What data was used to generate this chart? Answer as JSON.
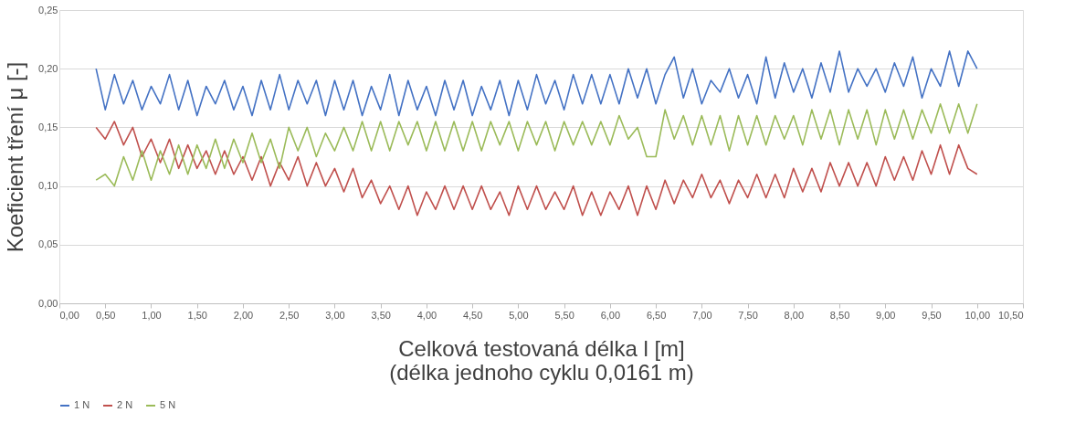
{
  "chart_data": {
    "type": "line",
    "xlabel": "Celková testovaná délka l [m]\n(délka jednoho cyklu 0,0161 m)",
    "ylabel": "Koeficient tření μ [-]",
    "x": [
      0.4,
      0.5,
      0.6,
      0.7,
      0.8,
      0.9,
      1.0,
      1.1,
      1.2,
      1.3,
      1.4,
      1.5,
      1.6,
      1.7,
      1.8,
      1.9,
      2.0,
      2.1,
      2.2,
      2.3,
      2.4,
      2.5,
      2.6,
      2.7,
      2.8,
      2.9,
      3.0,
      3.1,
      3.2,
      3.3,
      3.4,
      3.5,
      3.6,
      3.7,
      3.8,
      3.9,
      4.0,
      4.1,
      4.2,
      4.3,
      4.4,
      4.5,
      4.6,
      4.7,
      4.8,
      4.9,
      5.0,
      5.1,
      5.2,
      5.3,
      5.4,
      5.5,
      5.6,
      5.7,
      5.8,
      5.9,
      6.0,
      6.1,
      6.2,
      6.3,
      6.4,
      6.5,
      6.6,
      6.7,
      6.8,
      6.9,
      7.0,
      7.1,
      7.2,
      7.3,
      7.4,
      7.5,
      7.6,
      7.7,
      7.8,
      7.9,
      8.0,
      8.1,
      8.2,
      8.3,
      8.4,
      8.5,
      8.6,
      8.7,
      8.8,
      8.9,
      9.0,
      9.1,
      9.2,
      9.3,
      9.4,
      9.5,
      9.6,
      9.7,
      9.8,
      9.9,
      10.0
    ],
    "series": [
      {
        "name": "1 N",
        "color": "#4472c4",
        "values": [
          0.2,
          0.165,
          0.195,
          0.17,
          0.19,
          0.165,
          0.185,
          0.17,
          0.195,
          0.165,
          0.19,
          0.16,
          0.185,
          0.17,
          0.19,
          0.165,
          0.185,
          0.16,
          0.19,
          0.165,
          0.195,
          0.165,
          0.19,
          0.17,
          0.19,
          0.16,
          0.19,
          0.165,
          0.19,
          0.16,
          0.185,
          0.165,
          0.195,
          0.16,
          0.19,
          0.165,
          0.185,
          0.16,
          0.19,
          0.165,
          0.19,
          0.16,
          0.185,
          0.165,
          0.19,
          0.16,
          0.19,
          0.165,
          0.195,
          0.17,
          0.19,
          0.165,
          0.195,
          0.17,
          0.195,
          0.17,
          0.195,
          0.17,
          0.2,
          0.175,
          0.2,
          0.17,
          0.195,
          0.21,
          0.175,
          0.2,
          0.17,
          0.19,
          0.18,
          0.2,
          0.175,
          0.195,
          0.17,
          0.21,
          0.175,
          0.205,
          0.18,
          0.2,
          0.175,
          0.205,
          0.18,
          0.215,
          0.18,
          0.2,
          0.185,
          0.2,
          0.18,
          0.205,
          0.185,
          0.21,
          0.175,
          0.2,
          0.185,
          0.215,
          0.185,
          0.215,
          0.2
        ]
      },
      {
        "name": "2 N",
        "color": "#c0504d",
        "values": [
          0.15,
          0.14,
          0.155,
          0.135,
          0.15,
          0.125,
          0.14,
          0.12,
          0.14,
          0.115,
          0.135,
          0.115,
          0.13,
          0.11,
          0.13,
          0.11,
          0.125,
          0.105,
          0.125,
          0.1,
          0.12,
          0.105,
          0.125,
          0.1,
          0.12,
          0.1,
          0.115,
          0.095,
          0.115,
          0.09,
          0.105,
          0.085,
          0.1,
          0.08,
          0.1,
          0.075,
          0.095,
          0.08,
          0.1,
          0.08,
          0.1,
          0.08,
          0.1,
          0.08,
          0.095,
          0.075,
          0.1,
          0.08,
          0.1,
          0.08,
          0.095,
          0.08,
          0.1,
          0.075,
          0.095,
          0.075,
          0.095,
          0.08,
          0.1,
          0.075,
          0.1,
          0.08,
          0.105,
          0.085,
          0.105,
          0.09,
          0.11,
          0.09,
          0.105,
          0.085,
          0.105,
          0.09,
          0.11,
          0.09,
          0.11,
          0.09,
          0.115,
          0.095,
          0.115,
          0.095,
          0.12,
          0.1,
          0.12,
          0.1,
          0.12,
          0.1,
          0.125,
          0.105,
          0.125,
          0.105,
          0.13,
          0.11,
          0.135,
          0.11,
          0.135,
          0.115,
          0.11
        ]
      },
      {
        "name": "5 N",
        "color": "#9bbb59",
        "values": [
          0.105,
          0.11,
          0.1,
          0.125,
          0.105,
          0.13,
          0.105,
          0.13,
          0.11,
          0.135,
          0.11,
          0.135,
          0.115,
          0.14,
          0.115,
          0.14,
          0.12,
          0.145,
          0.12,
          0.14,
          0.115,
          0.15,
          0.13,
          0.15,
          0.125,
          0.145,
          0.13,
          0.15,
          0.13,
          0.155,
          0.13,
          0.155,
          0.13,
          0.155,
          0.135,
          0.155,
          0.13,
          0.155,
          0.13,
          0.155,
          0.13,
          0.155,
          0.13,
          0.155,
          0.135,
          0.155,
          0.13,
          0.155,
          0.135,
          0.155,
          0.13,
          0.155,
          0.135,
          0.155,
          0.135,
          0.155,
          0.135,
          0.16,
          0.14,
          0.15,
          0.125,
          0.125,
          0.165,
          0.14,
          0.16,
          0.135,
          0.16,
          0.135,
          0.16,
          0.13,
          0.16,
          0.135,
          0.16,
          0.135,
          0.16,
          0.14,
          0.16,
          0.135,
          0.165,
          0.14,
          0.165,
          0.135,
          0.165,
          0.14,
          0.165,
          0.135,
          0.165,
          0.14,
          0.165,
          0.14,
          0.165,
          0.145,
          0.17,
          0.145,
          0.17,
          0.145,
          0.17
        ]
      }
    ],
    "xlim": [
      0,
      10.5
    ],
    "xticks": [
      {
        "value": 0,
        "label": "0,00"
      },
      {
        "value": 0.5,
        "label": "0,50"
      },
      {
        "value": 1,
        "label": "1,00"
      },
      {
        "value": 1.5,
        "label": "1,50"
      },
      {
        "value": 2,
        "label": "2,00"
      },
      {
        "value": 2.5,
        "label": "2,50"
      },
      {
        "value": 3,
        "label": "3,00"
      },
      {
        "value": 3.5,
        "label": "3,50"
      },
      {
        "value": 4,
        "label": "4,00"
      },
      {
        "value": 4.5,
        "label": "4,50"
      },
      {
        "value": 5,
        "label": "5,00"
      },
      {
        "value": 5.5,
        "label": "5,50"
      },
      {
        "value": 6,
        "label": "6,00"
      },
      {
        "value": 6.5,
        "label": "6,50"
      },
      {
        "value": 7,
        "label": "7,00"
      },
      {
        "value": 7.5,
        "label": "7,50"
      },
      {
        "value": 8,
        "label": "8,00"
      },
      {
        "value": 8.5,
        "label": "8,50"
      },
      {
        "value": 9,
        "label": "9,00"
      },
      {
        "value": 9.5,
        "label": "9,50"
      },
      {
        "value": 10,
        "label": "10,00"
      },
      {
        "value": 10.5,
        "label": "10,50"
      }
    ],
    "ylim": [
      0,
      0.25
    ],
    "yticks": [
      {
        "value": 0,
        "label": "0,00"
      },
      {
        "value": 0.05,
        "label": "0,05"
      },
      {
        "value": 0.1,
        "label": "0,10"
      },
      {
        "value": 0.15,
        "label": "0,15"
      },
      {
        "value": 0.2,
        "label": "0,20"
      },
      {
        "value": 0.25,
        "label": "0,25"
      }
    ],
    "grid": "y",
    "legend": "bottom",
    "marker": "none",
    "line_style": "solid"
  }
}
